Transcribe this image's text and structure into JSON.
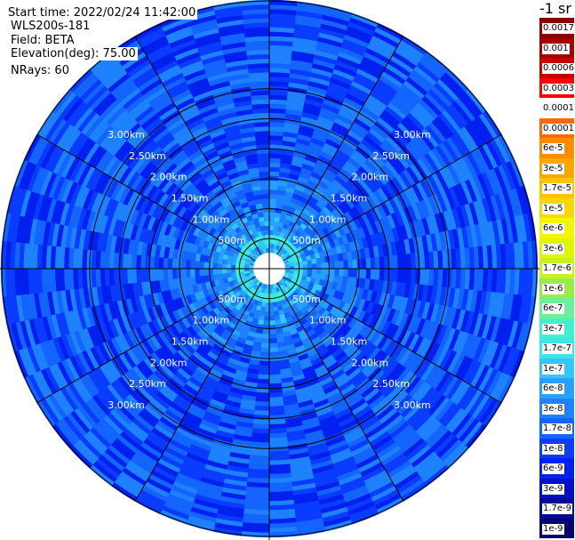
{
  "header": {
    "start_time": "Start time: 2022/02/24 11:42:00",
    "instrument": "WLS200s-181",
    "field": "Field: BETA",
    "elevation": "Elevation(deg): 75.00",
    "nrays": "NRays: 60"
  },
  "colorbar": {
    "unit": "-1 sr",
    "levels": [
      {
        "label": "0.0017",
        "color": "#8b0000"
      },
      {
        "label": "0.001",
        "color": "#a50000"
      },
      {
        "label": "0.0006",
        "color": "#c80000"
      },
      {
        "label": "0.0003",
        "color": "#ff0000"
      },
      {
        "label": "0.00017",
        "color": "#ffffff"
      },
      {
        "label": "0.0001",
        "color": "#ff6a00"
      },
      {
        "label": "6e-5",
        "color": "#ff8c00"
      },
      {
        "label": "3e-5",
        "color": "#ffa500"
      },
      {
        "label": "1.7e-5",
        "color": "#ffc400"
      },
      {
        "label": "1e-5",
        "color": "#ffd700"
      },
      {
        "label": "6e-6",
        "color": "#f5f500"
      },
      {
        "label": "3e-6",
        "color": "#e0f500"
      },
      {
        "label": "1.7e-6",
        "color": "#c8f01e"
      },
      {
        "label": "1e-6",
        "color": "#98ec4a"
      },
      {
        "label": "6e-7",
        "color": "#6ef09a"
      },
      {
        "label": "3e-7",
        "color": "#40f0c8"
      },
      {
        "label": "1.7e-7",
        "color": "#3ce6e6"
      },
      {
        "label": "1e-7",
        "color": "#32c8ff"
      },
      {
        "label": "6e-8",
        "color": "#28a0ff"
      },
      {
        "label": "3e-8",
        "color": "#1e82ff"
      },
      {
        "label": "1.7e-8",
        "color": "#1464ff"
      },
      {
        "label": "1e-8",
        "color": "#0a3cff"
      },
      {
        "label": "6e-9",
        "color": "#0020f0"
      },
      {
        "label": "3e-9",
        "color": "#0010c8"
      },
      {
        "label": "1.7e-9",
        "color": "#000a96"
      },
      {
        "label": "1e-9",
        "color": "#00006e"
      }
    ]
  },
  "range_rings": [
    {
      "label": "500m",
      "km": 0.5
    },
    {
      "label": "1.00km",
      "km": 1.0
    },
    {
      "label": "1.50km",
      "km": 1.5
    },
    {
      "label": "2.00km",
      "km": 2.0
    },
    {
      "label": "2.50km",
      "km": 2.5
    },
    {
      "label": "3.00km",
      "km": 3.0
    }
  ],
  "rays": 60,
  "spokes": 12
}
